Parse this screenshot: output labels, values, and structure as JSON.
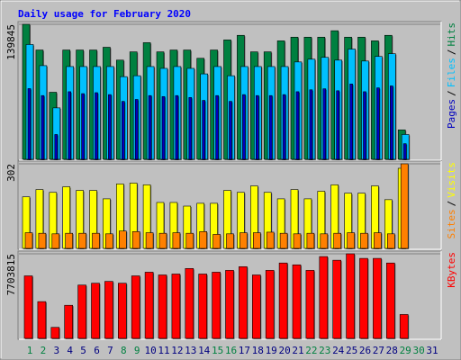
{
  "title": "Daily usage for February 2020",
  "chart_data": [
    {
      "type": "bar",
      "ylim": [
        0,
        139845
      ],
      "yticks": [
        139845
      ],
      "legend_separator": "/",
      "series": [
        {
          "name": "Hits",
          "color": "#008040",
          "values": [
            139845,
            113210,
            69447,
            113210,
            113210,
            113210,
            116064,
            102744,
            111307,
            120820,
            111307,
            113210,
            113210,
            104647,
            113210,
            123673,
            128430,
            111307,
            111307,
            122722,
            126527,
            126527,
            126527,
            133186,
            126527,
            126527,
            122722,
            128430,
            30443,
            null,
            null
          ]
        },
        {
          "name": "Files",
          "color": "#00c0ff",
          "values": [
            118916,
            97036,
            53274,
            96084,
            96084,
            96084,
            96084,
            85620,
            86571,
            96084,
            94181,
            96084,
            94181,
            88473,
            96084,
            86571,
            96084,
            96084,
            96084,
            96084,
            100840,
            103694,
            105597,
            102744,
            114159,
            101792,
            106549,
            109402,
            25686,
            null,
            null
          ]
        },
        {
          "name": "Pages",
          "color": "#0000c0",
          "values": [
            73232,
            66000,
            25686,
            70000,
            68000,
            69000,
            67000,
            60000,
            62000,
            66000,
            65000,
            66000,
            64000,
            61000,
            66000,
            60000,
            67000,
            66000,
            66000,
            67000,
            70000,
            72000,
            73000,
            71000,
            78000,
            70000,
            74000,
            76000,
            16172,
            null,
            null
          ]
        }
      ]
    },
    {
      "type": "bar",
      "ylim": [
        0,
        302
      ],
      "yticks": [
        302
      ],
      "legend_separator": "/",
      "series": [
        {
          "name": "Visits",
          "color": "#ffff00",
          "values": [
            184,
            210,
            200,
            220,
            207,
            207,
            177,
            230,
            233,
            227,
            164,
            164,
            151,
            161,
            161,
            207,
            200,
            223,
            200,
            177,
            210,
            177,
            204,
            227,
            197,
            197,
            223,
            174,
            286,
            null,
            null
          ]
        },
        {
          "name": "Sites",
          "color": "#ff8000",
          "values": [
            56,
            54,
            52,
            54,
            54,
            54,
            52,
            62,
            60,
            56,
            54,
            56,
            54,
            60,
            50,
            52,
            56,
            56,
            58,
            54,
            52,
            54,
            52,
            54,
            56,
            54,
            56,
            52,
            302,
            null,
            null
          ]
        }
      ]
    },
    {
      "type": "bar",
      "ylim": [
        0,
        7703815
      ],
      "yticks": [
        7703815
      ],
      "categories": [
        "1",
        "2",
        "3",
        "4",
        "5",
        "6",
        "7",
        "8",
        "9",
        "10",
        "11",
        "12",
        "13",
        "14",
        "15",
        "16",
        "17",
        "18",
        "19",
        "20",
        "21",
        "22",
        "23",
        "24",
        "25",
        "26",
        "27",
        "28",
        "29",
        "30",
        "31"
      ],
      "series": [
        {
          "name": "KBytes",
          "color": "#ff0000",
          "values": [
            5694124,
            3349485,
            1004845,
            3014536,
            4856644,
            5024227,
            5191701,
            5024227,
            5694124,
            6029073,
            5777861,
            5861598,
            6364021,
            5861598,
            6029073,
            6196548,
            6531496,
            5777861,
            6196548,
            6866444,
            6698970,
            6196548,
            7452603,
            7117660,
            7703815,
            7285012,
            7285012,
            6866444,
            2177169,
            null,
            null
          ]
        }
      ]
    }
  ]
}
